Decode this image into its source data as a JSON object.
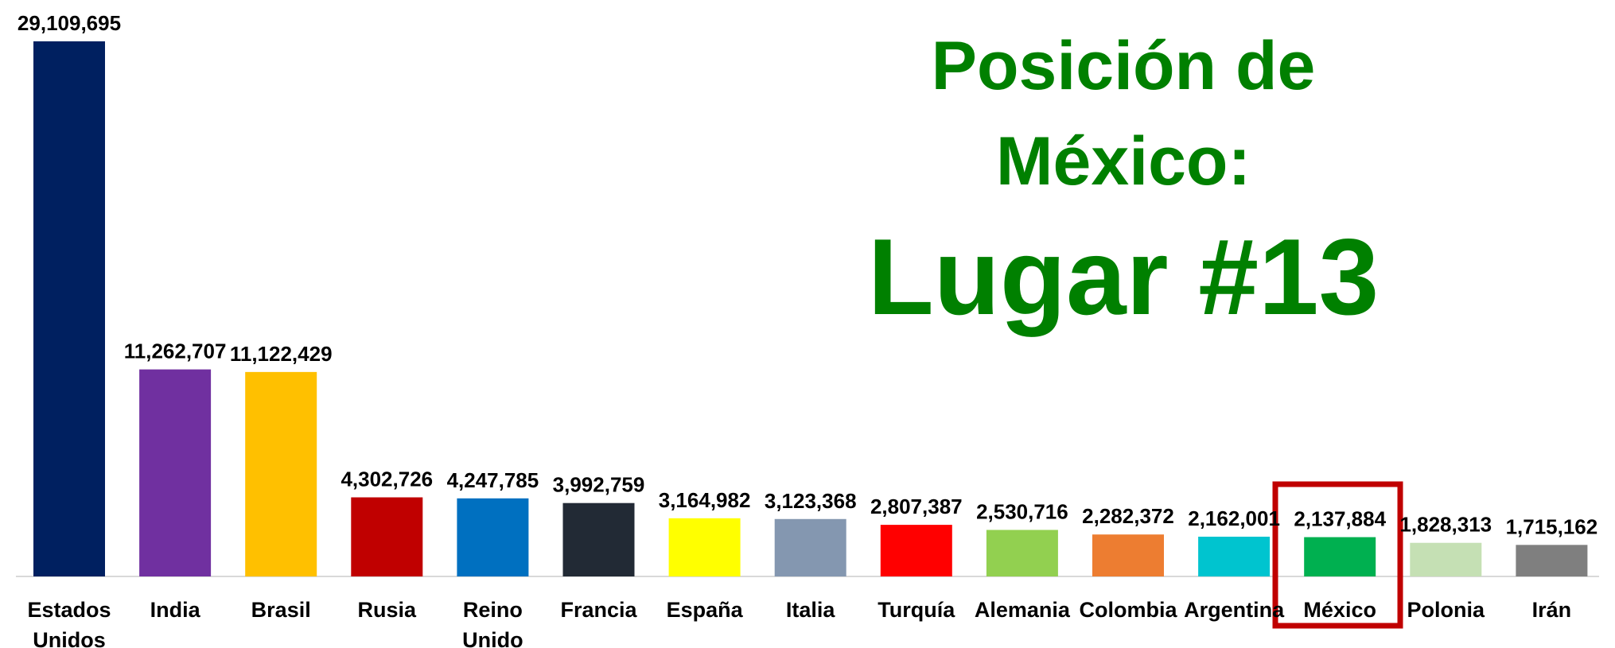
{
  "chart_data": {
    "type": "bar",
    "annotations": [
      "Posición de",
      "México:",
      "Lugar #13"
    ],
    "categories": [
      "Estados Unidos",
      "India",
      "Brasil",
      "Rusia",
      "Reino Unido",
      "Francia",
      "España",
      "Italia",
      "Turquía",
      "Alemania",
      "Colombia",
      "Argentina",
      "México",
      "Polonia",
      "Irán"
    ],
    "values": [
      29109695,
      11262707,
      11122429,
      4302726,
      4247785,
      3992759,
      3164982,
      3123368,
      2807387,
      2530716,
      2282372,
      2162001,
      2137884,
      1828313,
      1715162
    ],
    "value_labels": [
      "29,109,695",
      "11,262,707",
      "11,122,429",
      "4,302,726",
      "4,247,785",
      "3,992,759",
      "3,164,982",
      "3,123,368",
      "2,807,387",
      "2,530,716",
      "2,282,372",
      "2,162,001",
      "2,137,884",
      "1,828,313",
      "1,715,162"
    ],
    "colors": [
      "#002060",
      "#7030a0",
      "#ffc000",
      "#c00000",
      "#0070c0",
      "#222a35",
      "#ffff00",
      "#8497b0",
      "#ff0000",
      "#92d050",
      "#ed7d31",
      "#00c4cf",
      "#00b050",
      "#c5e0b4",
      "#7f7f7f"
    ]
  }
}
